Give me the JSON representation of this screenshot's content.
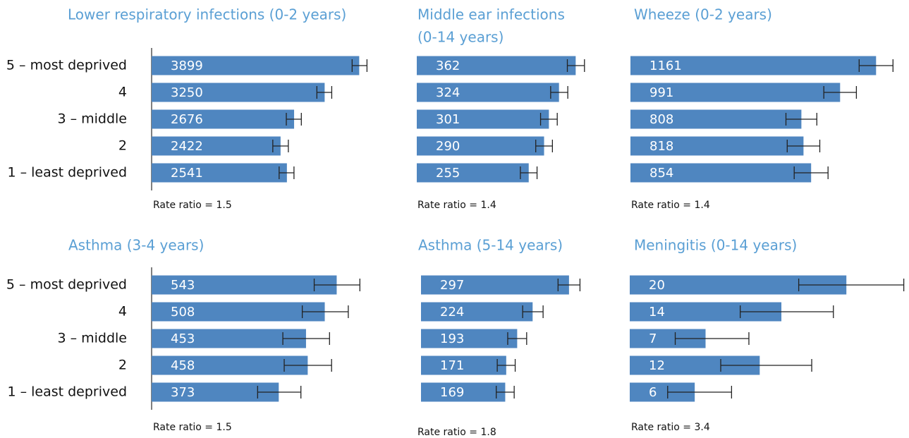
{
  "chart_data": [
    {
      "type": "bar",
      "title": "Lower respiratory infections (0-2 years)",
      "categories": [
        "5 – most deprived",
        "4",
        "3 – middle",
        "2",
        "1 – least deprived"
      ],
      "values": [
        3899,
        3250,
        2676,
        2422,
        2541
      ],
      "ci_low": [
        3766,
        3104,
        2530,
        2276,
        2395
      ],
      "ci_high": [
        4045,
        3383,
        2812,
        2568,
        2674
      ],
      "xlim": [
        0,
        4000
      ],
      "note": "Rate ratio = 1.5",
      "color": "#4f86c0"
    },
    {
      "type": "bar",
      "title": [
        "Middle ear infections",
        "(0-14 years)"
      ],
      "values": [
        362,
        324,
        301,
        290,
        255
      ],
      "ci_low": [
        343,
        305,
        282,
        271,
        236
      ],
      "ci_high": [
        382,
        344,
        320,
        309,
        274
      ],
      "xlim": [
        0,
        400
      ],
      "note": "Rate ratio = 1.4",
      "color": "#4f86c0"
    },
    {
      "type": "bar",
      "title": "Wheeze (0-2 years)",
      "values": [
        1161,
        991,
        808,
        818,
        854
      ],
      "ci_low": [
        1081,
        914,
        735,
        741,
        774
      ],
      "ci_high": [
        1241,
        1068,
        881,
        895,
        934
      ],
      "xlim": [
        0,
        1200
      ],
      "note": "Rate ratio = 1.4",
      "color": "#4f86c0"
    },
    {
      "type": "bar",
      "title": "Asthma (3-4 years)",
      "categories": [
        "5 – most deprived",
        "4",
        "3 – middle",
        "2",
        "1 – least deprived"
      ],
      "values": [
        543,
        508,
        453,
        458,
        373
      ],
      "ci_low": [
        477,
        442,
        385,
        389,
        311
      ],
      "ci_high": [
        611,
        577,
        522,
        528,
        438
      ],
      "xlim": [
        0,
        600
      ],
      "note": "Rate ratio = 1.5",
      "color": "#4f86c0"
    },
    {
      "type": "bar",
      "title": "Asthma (5-14 years)",
      "values": [
        297,
        224,
        193,
        171,
        169
      ],
      "ci_low": [
        275,
        204,
        174,
        153,
        151
      ],
      "ci_high": [
        319,
        245,
        212,
        189,
        187
      ],
      "xlim": [
        0,
        300
      ],
      "note": "Rate ratio = 1.8",
      "color": "#4f86c0"
    },
    {
      "type": "bar",
      "title": "Meningitis (0-14 years)",
      "values": [
        20,
        14,
        7,
        12,
        6
      ],
      "ci_low": [
        15.6,
        10.2,
        4.2,
        8.4,
        3.5
      ],
      "ci_high": [
        25.3,
        18.8,
        11.0,
        16.8,
        9.4
      ],
      "xlim": [
        0,
        25
      ],
      "note": "Rate ratio = 3.4",
      "color": "#4f86c0"
    }
  ]
}
